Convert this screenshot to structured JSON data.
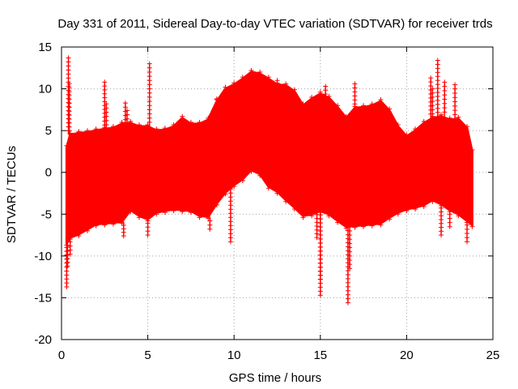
{
  "chart_data": {
    "type": "line",
    "title": "Day 331 of 2011, Sidereal Day-to-day VTEC variation (SDTVAR) for receiver trds",
    "xlabel": "GPS time / hours",
    "ylabel": "SDTVAR / TECUs",
    "xlim": [
      0,
      25
    ],
    "ylim": [
      -20,
      15
    ],
    "xticks": [
      0,
      5,
      10,
      15,
      20,
      25
    ],
    "yticks": [
      -20,
      -15,
      -10,
      -5,
      0,
      5,
      10,
      15
    ],
    "grid": true,
    "series": [
      {
        "name": "SDTVAR",
        "color": "#ff0000",
        "marker": "+",
        "style": "dense band of points (upper/lower envelope)",
        "x": [
          0.3,
          0.5,
          1,
          1.5,
          2,
          2.5,
          3,
          3.5,
          4,
          4.5,
          5,
          5.5,
          6,
          6.5,
          7,
          7.5,
          8,
          8.5,
          9,
          9.5,
          10,
          10.5,
          11,
          11.5,
          12,
          12.5,
          13,
          13.5,
          14,
          14.5,
          15,
          15.5,
          16,
          16.5,
          17,
          17.5,
          18,
          18.5,
          19,
          19.5,
          20,
          20.5,
          21,
          21.5,
          22,
          22.5,
          23,
          23.5,
          23.8
        ],
        "upper": [
          3,
          4.5,
          4.7,
          4.8,
          5,
          5.2,
          5.3,
          5.8,
          5.9,
          5.5,
          5.5,
          5,
          5.1,
          5.5,
          6.5,
          5.8,
          5.8,
          6.3,
          8.5,
          10,
          10.5,
          11.2,
          12,
          11.8,
          11.2,
          10.5,
          10.4,
          9.7,
          8,
          8.8,
          9.4,
          8.9,
          7.8,
          6.5,
          7.7,
          7.8,
          8,
          8.5,
          7.4,
          5.5,
          4.3,
          5,
          5.9,
          6.5,
          6.7,
          6.3,
          6.4,
          5.3,
          2.5
        ],
        "lower": [
          -8.5,
          -7.8,
          -7.4,
          -6.8,
          -6.2,
          -6.1,
          -6,
          -5.9,
          -4.5,
          -5.2,
          -5.6,
          -4.8,
          -4.6,
          -4.4,
          -4.5,
          -4.6,
          -5.2,
          -5.3,
          -3.7,
          -2.4,
          -1.5,
          -0.8,
          0.3,
          -0.2,
          -1.7,
          -2.3,
          -3.3,
          -4.2,
          -5.2,
          -5,
          -4.6,
          -5,
          -5.8,
          -6.5,
          -6.4,
          -6.3,
          -6.2,
          -6.1,
          -5.4,
          -4.8,
          -4.4,
          -4.2,
          -3.9,
          -3.3,
          -3.8,
          -4.5,
          -5,
          -5.8,
          -6.3
        ]
      }
    ],
    "outliers": [
      {
        "x": 0.3,
        "y": -13.7
      },
      {
        "x": 0.4,
        "y": 13.7
      },
      {
        "x": 0.35,
        "y": -11.2
      },
      {
        "x": 0.45,
        "y": 10.6
      },
      {
        "x": 0.5,
        "y": -9.8
      },
      {
        "x": 2.5,
        "y": 10.8
      },
      {
        "x": 2.6,
        "y": 8.2
      },
      {
        "x": 3.6,
        "y": -7.6
      },
      {
        "x": 3.7,
        "y": 8.3
      },
      {
        "x": 3.8,
        "y": 7.4
      },
      {
        "x": 5.1,
        "y": 13
      },
      {
        "x": 5.0,
        "y": -7.5
      },
      {
        "x": 8.6,
        "y": -6.8
      },
      {
        "x": 9.0,
        "y": 8.8
      },
      {
        "x": 9.8,
        "y": -8.3
      },
      {
        "x": 12.5,
        "y": 11
      },
      {
        "x": 14.8,
        "y": -7.8
      },
      {
        "x": 15.0,
        "y": -12.8
      },
      {
        "x": 15.0,
        "y": -14.7
      },
      {
        "x": 15.3,
        "y": 10.3
      },
      {
        "x": 16.6,
        "y": -15.6
      },
      {
        "x": 16.7,
        "y": -11.5
      },
      {
        "x": 17.0,
        "y": 10.6
      },
      {
        "x": 21.4,
        "y": 11.3
      },
      {
        "x": 21.5,
        "y": 10
      },
      {
        "x": 21.8,
        "y": 13.4
      },
      {
        "x": 22.2,
        "y": 10.8
      },
      {
        "x": 22.8,
        "y": 10.5
      },
      {
        "x": 23.5,
        "y": -8.3
      },
      {
        "x": 22.0,
        "y": -7.5
      },
      {
        "x": 22.5,
        "y": -6.5
      }
    ]
  }
}
